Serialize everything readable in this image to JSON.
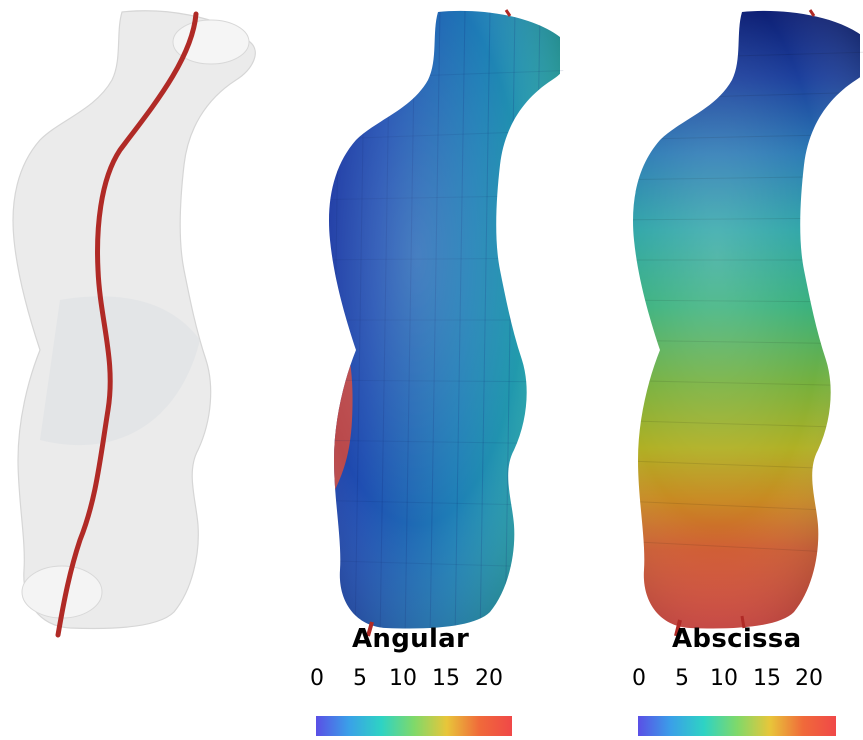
{
  "panels": [
    {
      "name": "centerline",
      "surface": "transparent",
      "surface_color": "#e8e8e8",
      "centerline_color": "#c0302b"
    },
    {
      "name": "angular",
      "surface": "colormapped",
      "colorbar": {
        "title": "Angular",
        "ticks": [
          "0",
          "5",
          "10",
          "15",
          "20"
        ],
        "colormap": [
          "#5a4fe6",
          "#3aa0e8",
          "#2ed3c4",
          "#7fd96a",
          "#e8c63a",
          "#f06a3a",
          "#f04848"
        ]
      }
    },
    {
      "name": "abscissa",
      "surface": "colormapped",
      "colorbar": {
        "title": "Abscissa",
        "ticks": [
          "0",
          "5",
          "10",
          "15",
          "20"
        ],
        "colormap": [
          "#5a4fe6",
          "#3aa0e8",
          "#2ed3c4",
          "#7fd96a",
          "#e8c63a",
          "#f06a3a",
          "#f04848"
        ]
      }
    }
  ]
}
